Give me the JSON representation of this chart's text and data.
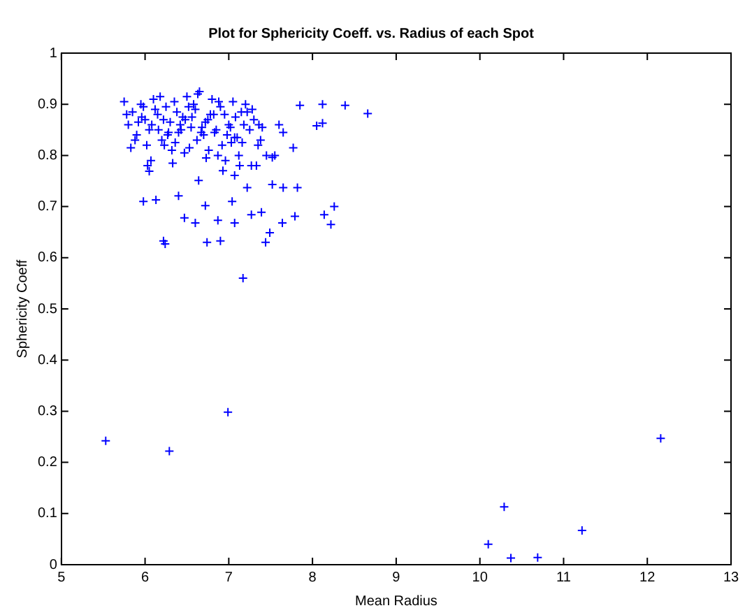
{
  "chart_data": {
    "type": "scatter",
    "title": "Plot for Sphericity Coeff. vs. Radius of each Spot",
    "xlabel": "Mean Radius",
    "ylabel": "Sphericity Coeff",
    "xlim": [
      5,
      13
    ],
    "xticks": [
      5,
      6,
      7,
      8,
      9,
      10,
      11,
      12,
      13
    ],
    "ylim": [
      0,
      1
    ],
    "yticks": [
      0,
      0.1,
      0.2,
      0.3,
      0.4,
      0.5,
      0.6,
      0.7,
      0.8,
      0.9,
      1
    ],
    "grid": false,
    "legend": false,
    "marker": "cross",
    "series": [
      {
        "color": "#0000ff",
        "x": [
          5.53,
          6.29,
          6.99,
          10.1,
          10.29,
          10.37,
          10.69,
          11.22,
          12.16,
          8.66,
          8.39,
          8.12,
          7.85,
          8.12,
          8.05,
          8.26,
          8.14,
          8.22,
          7.79,
          7.82,
          7.17,
          6.22,
          6.24,
          5.98,
          6.13,
          6.4,
          6.74,
          6.9,
          7.44,
          7.49,
          7.64,
          6.47,
          6.6,
          6.87,
          7.07,
          7.27,
          7.39,
          7.04,
          7.22,
          7.52,
          7.65,
          7.07,
          7.52,
          6.72,
          6.64,
          6.05,
          7.77,
          7.65,
          5.75,
          5.8,
          5.85,
          5.9,
          5.95,
          6.0,
          6.05,
          6.1,
          6.15,
          6.2,
          6.25,
          6.3,
          6.35,
          6.4,
          6.45,
          6.5,
          6.55,
          6.6,
          6.65,
          6.7,
          6.75,
          6.8,
          6.85,
          6.9,
          6.95,
          7.0,
          7.05,
          7.1,
          7.15,
          7.2,
          7.25,
          7.3,
          7.35,
          5.78,
          5.88,
          5.98,
          6.08,
          6.18,
          6.28,
          6.38,
          6.48,
          6.58,
          6.68,
          6.78,
          6.88,
          6.98,
          7.08,
          7.18,
          7.28,
          7.38,
          5.92,
          6.02,
          6.12,
          6.22,
          6.32,
          6.42,
          6.52,
          6.62,
          6.72,
          6.82,
          6.92,
          7.02,
          7.12,
          7.22,
          5.83,
          6.07,
          6.27,
          6.47,
          6.67,
          6.87,
          7.07,
          7.27,
          7.45,
          5.96,
          6.16,
          6.36,
          6.56,
          6.76,
          6.96,
          7.16,
          7.36,
          6.33,
          6.53,
          6.73,
          6.93,
          7.13,
          7.33,
          7.55,
          7.6,
          7.4,
          6.03,
          6.23,
          6.43,
          6.63,
          6.83,
          7.03
        ],
        "values": [
          0.242,
          0.222,
          0.298,
          0.04,
          0.113,
          0.013,
          0.014,
          0.067,
          0.247,
          0.882,
          0.898,
          0.9,
          0.898,
          0.863,
          0.858,
          0.7,
          0.684,
          0.665,
          0.681,
          0.737,
          0.56,
          0.633,
          0.627,
          0.71,
          0.713,
          0.721,
          0.63,
          0.633,
          0.63,
          0.649,
          0.668,
          0.678,
          0.668,
          0.673,
          0.668,
          0.684,
          0.689,
          0.71,
          0.737,
          0.743,
          0.737,
          0.761,
          0.796,
          0.702,
          0.751,
          0.769,
          0.815,
          0.845,
          0.905,
          0.86,
          0.885,
          0.84,
          0.9,
          0.87,
          0.85,
          0.91,
          0.88,
          0.83,
          0.895,
          0.865,
          0.905,
          0.845,
          0.875,
          0.915,
          0.855,
          0.89,
          0.925,
          0.84,
          0.87,
          0.91,
          0.85,
          0.895,
          0.88,
          0.86,
          0.905,
          0.835,
          0.885,
          0.9,
          0.85,
          0.87,
          0.82,
          0.88,
          0.83,
          0.895,
          0.86,
          0.915,
          0.845,
          0.885,
          0.87,
          0.9,
          0.855,
          0.88,
          0.905,
          0.84,
          0.875,
          0.86,
          0.89,
          0.83,
          0.865,
          0.82,
          0.89,
          0.87,
          0.81,
          0.86,
          0.895,
          0.83,
          0.865,
          0.88,
          0.82,
          0.855,
          0.8,
          0.885,
          0.815,
          0.79,
          0.84,
          0.805,
          0.845,
          0.8,
          0.835,
          0.78,
          0.8,
          0.875,
          0.85,
          0.825,
          0.875,
          0.81,
          0.79,
          0.825,
          0.86,
          0.785,
          0.815,
          0.795,
          0.77,
          0.78,
          0.78,
          0.8,
          0.86,
          0.855,
          0.78,
          0.82,
          0.85,
          0.92,
          0.845,
          0.825
        ]
      }
    ]
  }
}
